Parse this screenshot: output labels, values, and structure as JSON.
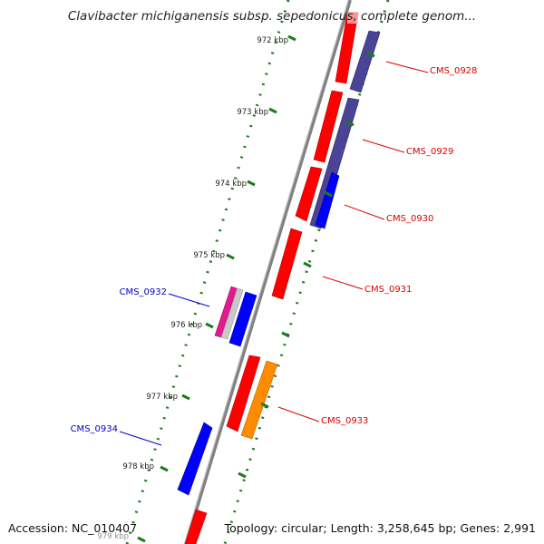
{
  "title": "Clavibacter michiganensis subsp. sepedonicus, complete genom...",
  "footer": {
    "accession": "Accession: NC_010407",
    "topology": "Topology: circular; Length: 3,258,645 bp; Genes: 2,991"
  },
  "ticks": [
    "972 kbp",
    "973 kbp",
    "974 kbp",
    "975 kbp",
    "976 kbp",
    "977 kbp",
    "978 kbp",
    "979 kbp"
  ],
  "gene_labels": [
    {
      "text": "CMS_0928",
      "color": "#dd0000"
    },
    {
      "text": "CMS_0929",
      "color": "#dd0000"
    },
    {
      "text": "CMS_0930",
      "color": "#dd0000"
    },
    {
      "text": "CMS_0931",
      "color": "#dd0000"
    },
    {
      "text": "CMS_0932",
      "color": "#0000cc"
    },
    {
      "text": "CMS_0933",
      "color": "#dd0000"
    },
    {
      "text": "CMS_0934",
      "color": "#0000cc"
    }
  ],
  "colors": {
    "backbone": "#808080",
    "red_feature": "#ff0000",
    "blue_feature": "#0000ff",
    "purple_feature": "#4b4396",
    "orange_feature": "#ff8c00",
    "magenta_feature": "#e4198e",
    "grey_feature": "#c8c8c8",
    "tick_marks": "#1b7a1b"
  }
}
